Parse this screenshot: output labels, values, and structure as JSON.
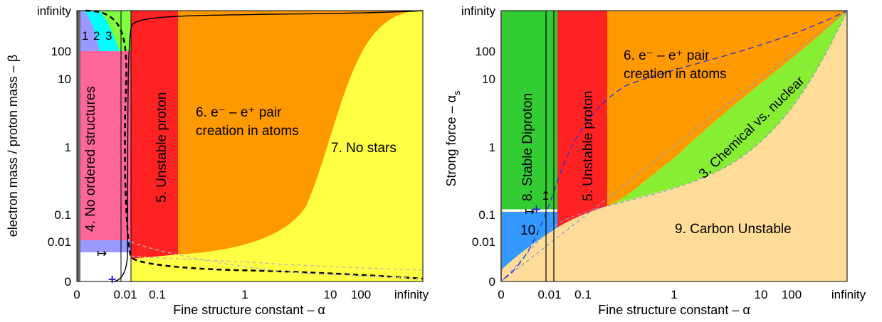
{
  "chart_data": [
    {
      "type": "area",
      "title": "",
      "xlabel": "Fine structure constant – α",
      "ylabel": "electron mass / proton mass – β",
      "x_ticks": [
        "0",
        "0.01",
        "0.1",
        "1",
        "10",
        "100",
        "infinity"
      ],
      "y_ticks": [
        "infinity",
        "100",
        "10",
        "1",
        "0.1",
        "0.01",
        "0"
      ],
      "regions": [
        {
          "label": "1",
          "color": "#9999ff"
        },
        {
          "label": "2",
          "color": "#00ffff"
        },
        {
          "label": "3",
          "color": "#7fff3f"
        },
        {
          "label": "4. No ordered structures",
          "color": "#ff6699"
        },
        {
          "label": "5. Unstable proton",
          "color": "#ff2222"
        },
        {
          "label": "6. e⁻ – e⁺ pair creation in atoms",
          "line1": "6. e⁻ – e⁺ pair",
          "line2": "creation in atoms",
          "color": "#ff9900"
        },
        {
          "label": "7. No stars",
          "color": "#ffff44"
        }
      ],
      "marker_label": "↦",
      "marker_point": {
        "x": 0.0073,
        "y": 0.000545
      }
    },
    {
      "type": "area",
      "title": "",
      "xlabel": "Fine structure constant – α",
      "ylabel": "Strong force – αs",
      "ylabel_main": "Strong force – α",
      "ylabel_sub": "s",
      "x_ticks": [
        "0",
        "0.01",
        "0.1",
        "1",
        "10",
        "100",
        "infinity"
      ],
      "y_ticks": [
        "infinity",
        "100",
        "10",
        "1",
        "0.1",
        "0.01",
        "0"
      ],
      "regions": [
        {
          "label": "8. Stable Diproton",
          "color": "#33cc33"
        },
        {
          "label": "5. Unstable proton",
          "color": "#ff2222"
        },
        {
          "label": "6. e⁻ – e⁺ pair creation in atoms",
          "line1": "6. e⁻ – e⁺ pair",
          "line2": "creation in atoms",
          "color": "#ff9900"
        },
        {
          "label": "3. Chemical vs. nuclear",
          "color": "#88ee33"
        },
        {
          "label": "9. Carbon Unstable",
          "color": "#ffdd99"
        },
        {
          "label": "10.",
          "color": "#3399ff"
        }
      ],
      "marker_label": "↦",
      "marker_label_2": "↦",
      "marker_point": {
        "x": 0.0073,
        "y": 0.12
      }
    }
  ]
}
